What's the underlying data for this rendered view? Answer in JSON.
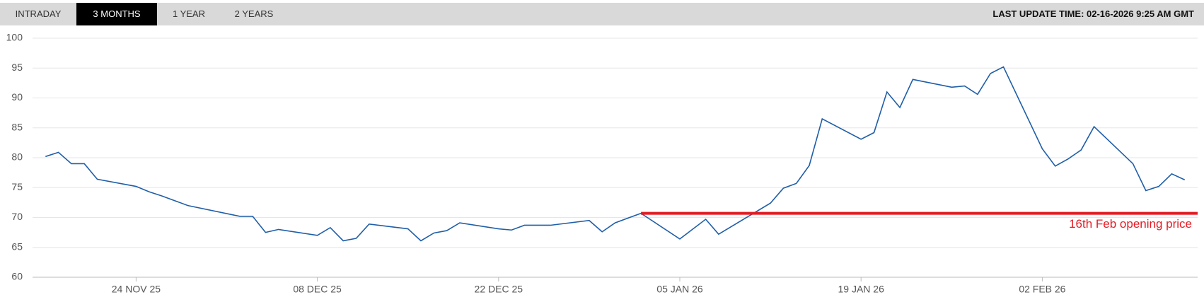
{
  "tabs": [
    "INTRADAY",
    "3 MONTHS",
    "1 YEAR",
    "2 YEARS"
  ],
  "active_tab": "3 MONTHS",
  "last_update": "LAST UPDATE TIME: 02-16-2026 9:25 AM GMT",
  "chart_data": {
    "type": "line",
    "x": [
      "2025-11-17",
      "2025-11-18",
      "2025-11-19",
      "2025-11-20",
      "2025-11-21",
      "2025-11-24",
      "2025-11-25",
      "2025-11-26",
      "2025-11-27",
      "2025-11-28",
      "2025-12-02",
      "2025-12-03",
      "2025-12-04",
      "2025-12-05",
      "2025-12-08",
      "2025-12-09",
      "2025-12-10",
      "2025-12-11",
      "2025-12-12",
      "2025-12-15",
      "2025-12-16",
      "2025-12-17",
      "2025-12-18",
      "2025-12-19",
      "2025-12-22",
      "2025-12-23",
      "2025-12-24",
      "2025-12-26",
      "2025-12-29",
      "2025-12-30",
      "2025-12-31",
      "2026-01-02",
      "2026-01-05",
      "2026-01-07",
      "2026-01-08",
      "2026-01-12",
      "2026-01-13",
      "2026-01-14",
      "2026-01-15",
      "2026-01-16",
      "2026-01-19",
      "2026-01-20",
      "2026-01-21",
      "2026-01-22",
      "2026-01-23",
      "2026-01-26",
      "2026-01-27",
      "2026-01-28",
      "2026-01-29",
      "2026-01-30",
      "2026-02-02",
      "2026-02-03",
      "2026-02-04",
      "2026-02-05",
      "2026-02-06",
      "2026-02-09",
      "2026-02-10",
      "2026-02-11",
      "2026-02-12",
      "2026-02-13"
    ],
    "series": [
      {
        "color": "#1f5ea8",
        "values": [
          80.2,
          80.9,
          79.0,
          79.0,
          76.4,
          75.2,
          74.3,
          73.6,
          72.8,
          72.0,
          70.2,
          70.2,
          67.5,
          68.0,
          67.0,
          68.3,
          66.1,
          66.5,
          68.9,
          68.1,
          66.1,
          67.4,
          67.8,
          69.1,
          68.1,
          67.9,
          68.7,
          68.7,
          69.5,
          67.6,
          69.1,
          70.7,
          66.4,
          69.7,
          67.2,
          72.4,
          74.9,
          75.7,
          78.7,
          86.5,
          83.1,
          84.2,
          91.0,
          88.4,
          93.1,
          91.8,
          92.0,
          90.6,
          94.1,
          95.2,
          81.5,
          78.6,
          79.8,
          81.3,
          85.2,
          79.0,
          74.5,
          75.2,
          77.3,
          76.3
        ]
      }
    ],
    "xlim": [
      "2025-11-16",
      "2026-02-14"
    ],
    "xticks": [
      {
        "value": "2025-11-24",
        "label": "24 NOV 25"
      },
      {
        "value": "2025-12-08",
        "label": "08 DEC 25"
      },
      {
        "value": "2025-12-22",
        "label": "22 DEC 25"
      },
      {
        "value": "2026-01-05",
        "label": "05 JAN 26"
      },
      {
        "value": "2026-01-19",
        "label": "19 JAN 26"
      },
      {
        "value": "2026-02-02",
        "label": "02 FEB 26"
      }
    ],
    "ylim": [
      60,
      100
    ],
    "yticks": [
      60,
      65,
      70,
      75,
      80,
      85,
      90,
      95,
      100
    ],
    "grid": true,
    "reference_line": {
      "value": 70.7,
      "start": "2026-01-02",
      "label": "16th Feb opening price",
      "color": "#e31b23"
    }
  }
}
